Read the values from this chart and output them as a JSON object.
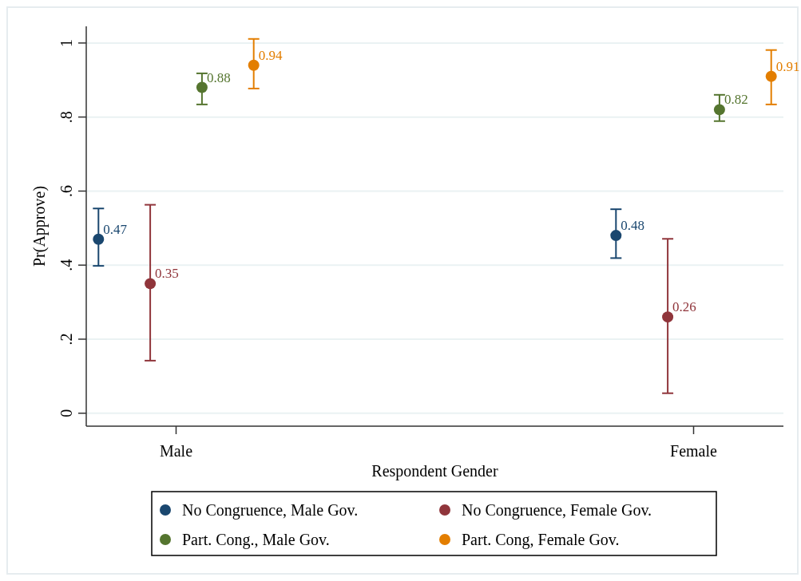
{
  "chart_data": {
    "type": "scatter",
    "xlabel": "Respondent Gender",
    "ylabel": "Pr(Approve)",
    "categories": [
      "Male",
      "Female"
    ],
    "ylim": [
      -0.035,
      1.045
    ],
    "yticks": [
      0,
      {
        "value": 0.2,
        "label": ".2"
      },
      {
        "value": 0.4,
        "label": ".4"
      },
      {
        "value": 0.6,
        "label": ".6"
      },
      {
        "value": 0.8,
        "label": ".8"
      },
      1
    ],
    "grid": "y",
    "legend": "bottom",
    "marker": "circle",
    "data_labels": true,
    "series": [
      {
        "name": "No Congruence, Male Gov.",
        "color": "#1a476f",
        "values": [
          0.47,
          0.48
        ],
        "errors": [
          [
            0.398,
            0.553
          ],
          [
            0.419,
            0.551
          ]
        ]
      },
      {
        "name": "No Congruence, Female Gov.",
        "color": "#90353b",
        "values": [
          0.35,
          0.26
        ],
        "errors": [
          [
            0.142,
            0.563
          ],
          [
            0.054,
            0.471
          ]
        ]
      },
      {
        "name": "Part. Cong., Male Gov.",
        "color": "#55752f",
        "values": [
          0.88,
          0.82
        ],
        "errors": [
          [
            0.834,
            0.918
          ],
          [
            0.789,
            0.86
          ]
        ]
      },
      {
        "name": "Part. Cong, Female Gov.",
        "color": "#e37e00",
        "values": [
          0.94,
          0.91
        ],
        "errors": [
          [
            0.877,
            1.011
          ],
          [
            0.834,
            0.981
          ]
        ]
      }
    ]
  }
}
